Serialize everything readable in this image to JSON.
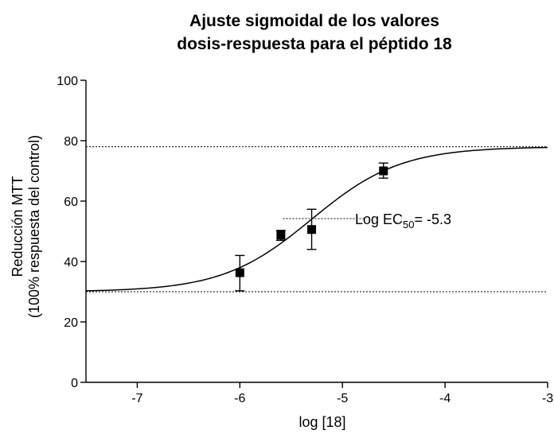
{
  "chart_data": {
    "type": "scatter",
    "title_lines": [
      "Ajuste sigmoidal de los valores",
      "dosis-respuesta para el péptido 18"
    ],
    "xlabel": "log [18]",
    "ylabel_lines": [
      "Reducción MTT",
      "(100% respuesta del control)"
    ],
    "xlim": [
      -7.5,
      -3
    ],
    "ylim": [
      0,
      100
    ],
    "xticks": [
      -7,
      -6,
      -5,
      -4,
      -3
    ],
    "yticks": [
      0,
      20,
      40,
      60,
      80,
      100
    ],
    "points": [
      {
        "x": -6.0,
        "y": 36.3,
        "err_low": 30.3,
        "err_high": 42.0
      },
      {
        "x": -5.6,
        "y": 48.7,
        "err_low": 47.0,
        "err_high": 50.3
      },
      {
        "x": -5.3,
        "y": 50.6,
        "err_low": 44.0,
        "err_high": 57.3
      },
      {
        "x": -4.6,
        "y": 70.0,
        "err_low": 67.6,
        "err_high": 72.6
      }
    ],
    "fit": {
      "model": "sigmoidal",
      "bottom": 30,
      "top": 78,
      "log_ec50": -5.3,
      "hill": 1
    },
    "reference_lines": {
      "bottom": 30,
      "top": 78,
      "ec50_y": 54.2
    },
    "annotation": {
      "prefix": "Log EC",
      "subscript": "50",
      "suffix": "= -5.3"
    },
    "grid": false,
    "legend": "none"
  }
}
